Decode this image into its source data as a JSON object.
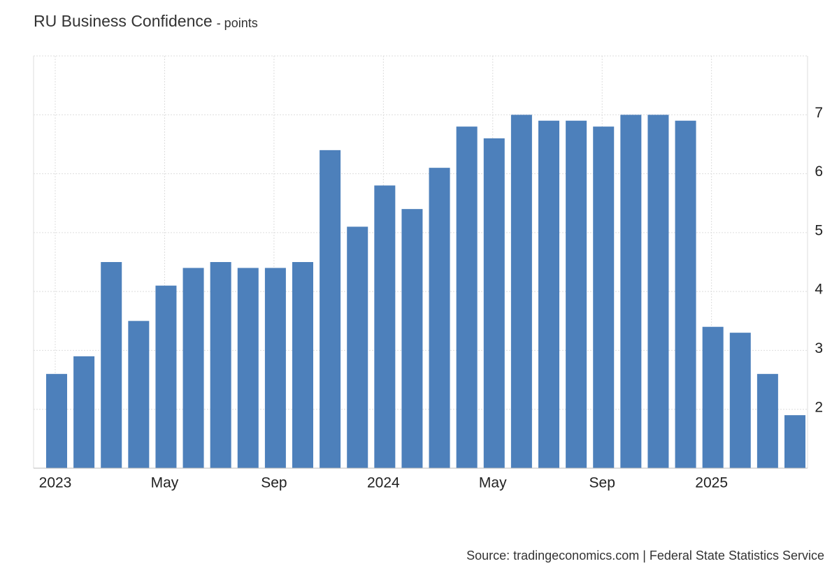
{
  "chart_data": {
    "type": "bar",
    "title": "RU Business Confidence",
    "subtitle": "- points",
    "source": "Source: tradingeconomics.com | Federal State Statistics Service",
    "categories": [
      "2023",
      null,
      null,
      null,
      "May",
      null,
      null,
      null,
      "Sep",
      null,
      null,
      null,
      "2024",
      null,
      null,
      null,
      "May",
      null,
      null,
      null,
      "Sep",
      null,
      null,
      null,
      "2025",
      null,
      null,
      null
    ],
    "values": [
      2.6,
      2.9,
      4.5,
      3.5,
      4.1,
      4.4,
      4.5,
      4.4,
      4.4,
      4.5,
      6.4,
      5.1,
      5.8,
      5.4,
      6.1,
      6.8,
      6.6,
      7.0,
      6.9,
      6.9,
      6.8,
      7.0,
      7.0,
      6.9,
      3.4,
      3.3,
      2.6,
      1.9
    ],
    "color": "#4d80bb",
    "ylim": [
      1,
      8
    ],
    "yticks": [
      2,
      3,
      4,
      5,
      6,
      7
    ],
    "grid": true
  }
}
